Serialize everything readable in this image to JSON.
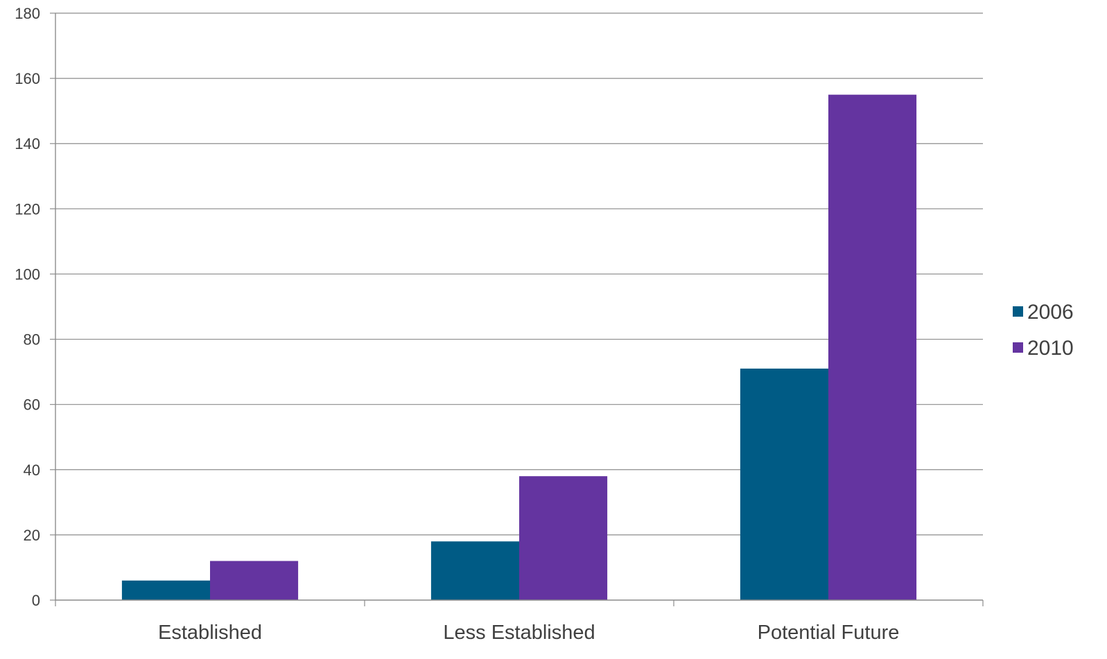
{
  "chart_data": {
    "type": "bar",
    "title": "",
    "xlabel": "",
    "ylabel": "",
    "categories": [
      "Established",
      "Less Established",
      "Potential Future"
    ],
    "series": [
      {
        "name": "2006",
        "values": [
          6,
          18,
          71
        ],
        "color": "#005b85"
      },
      {
        "name": "2010",
        "values": [
          12,
          38,
          155
        ],
        "color": "#6434a0"
      }
    ],
    "ylim": [
      0,
      180
    ],
    "yticks": [
      0,
      20,
      40,
      60,
      80,
      100,
      120,
      140,
      160,
      180
    ],
    "grid": true,
    "legend_position": "right"
  }
}
